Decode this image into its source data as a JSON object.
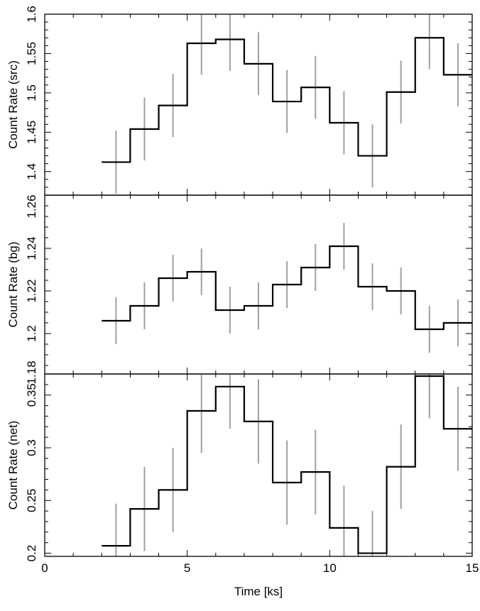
{
  "chart_data": [
    {
      "type": "line",
      "ylabel": "Count Rate (src)",
      "ylim": [
        1.37,
        1.6
      ],
      "xlim": [
        0,
        15
      ],
      "yticks": [
        1.4,
        1.45,
        1.5,
        1.55,
        1.6
      ],
      "ytick_labels": [
        "1.4",
        "1.45",
        "1.5",
        "1.55",
        "1.6"
      ],
      "series": [
        {
          "bin_edges": [
            2,
            3,
            4,
            5,
            6,
            7,
            8,
            9,
            10,
            11,
            12,
            13,
            14,
            15
          ],
          "x": [
            2.5,
            3.5,
            4.5,
            5.5,
            6.5,
            7.5,
            8.5,
            9.5,
            10.5,
            11.5,
            12.5,
            13.5,
            14.5
          ],
          "y": [
            1.412,
            1.454,
            1.484,
            1.563,
            1.568,
            1.537,
            1.489,
            1.507,
            1.462,
            1.42,
            1.501,
            1.57,
            1.523
          ],
          "err": [
            0.04,
            0.04,
            0.04,
            0.04,
            0.04,
            0.04,
            0.04,
            0.04,
            0.04,
            0.04,
            0.04,
            0.04,
            0.04
          ]
        }
      ]
    },
    {
      "type": "line",
      "ylabel": "Count Rate (bg)",
      "ylim": [
        1.181,
        1.265
      ],
      "xlim": [
        0,
        15
      ],
      "yticks": [
        1.2,
        1.22,
        1.24
      ],
      "ytick_labels": [
        "1.2",
        "1.22",
        "1.24"
      ],
      "series": [
        {
          "bin_edges": [
            2,
            3,
            4,
            5,
            6,
            7,
            8,
            9,
            10,
            11,
            12,
            13,
            14,
            15
          ],
          "x": [
            2.5,
            3.5,
            4.5,
            5.5,
            6.5,
            7.5,
            8.5,
            9.5,
            10.5,
            11.5,
            12.5,
            13.5,
            14.5
          ],
          "y": [
            1.206,
            1.213,
            1.226,
            1.229,
            1.211,
            1.213,
            1.223,
            1.231,
            1.241,
            1.222,
            1.22,
            1.202,
            1.205
          ],
          "err": [
            0.011,
            0.011,
            0.011,
            0.011,
            0.011,
            0.011,
            0.011,
            0.011,
            0.011,
            0.011,
            0.011,
            0.011,
            0.011
          ]
        }
      ]
    },
    {
      "type": "line",
      "ylabel": "Count Rate (net)",
      "ylim": [
        0.197,
        0.37
      ],
      "xlim": [
        0,
        15
      ],
      "xlabel": "Time [ks]",
      "xticks": [
        0,
        5,
        10,
        15
      ],
      "xtick_labels": [
        "0",
        "5",
        "10",
        "15"
      ],
      "yticks": [
        0.2,
        0.25,
        0.3,
        0.35
      ],
      "ytick_labels": [
        "0.2",
        "0.25",
        "0.3",
        "0.35"
      ],
      "series": [
        {
          "bin_edges": [
            2,
            3,
            4,
            5,
            6,
            7,
            8,
            9,
            10,
            11,
            12,
            13,
            14,
            15
          ],
          "x": [
            2.5,
            3.5,
            4.5,
            5.5,
            6.5,
            7.5,
            8.5,
            9.5,
            10.5,
            11.5,
            12.5,
            13.5,
            14.5
          ],
          "y": [
            0.207,
            0.242,
            0.26,
            0.335,
            0.358,
            0.325,
            0.267,
            0.277,
            0.224,
            0.2,
            0.282,
            0.368,
            0.318
          ],
          "err": [
            0.04,
            0.04,
            0.04,
            0.04,
            0.04,
            0.04,
            0.04,
            0.04,
            0.04,
            0.04,
            0.04,
            0.04,
            0.04
          ]
        }
      ]
    }
  ],
  "shared_edge_labels": {
    "top_bg_panel": "1.26",
    "bottom_bg_panel": "1.18"
  },
  "colors": {
    "step_line": "#000000",
    "error_bar": "#a0a0a0",
    "axis": "#000000"
  }
}
